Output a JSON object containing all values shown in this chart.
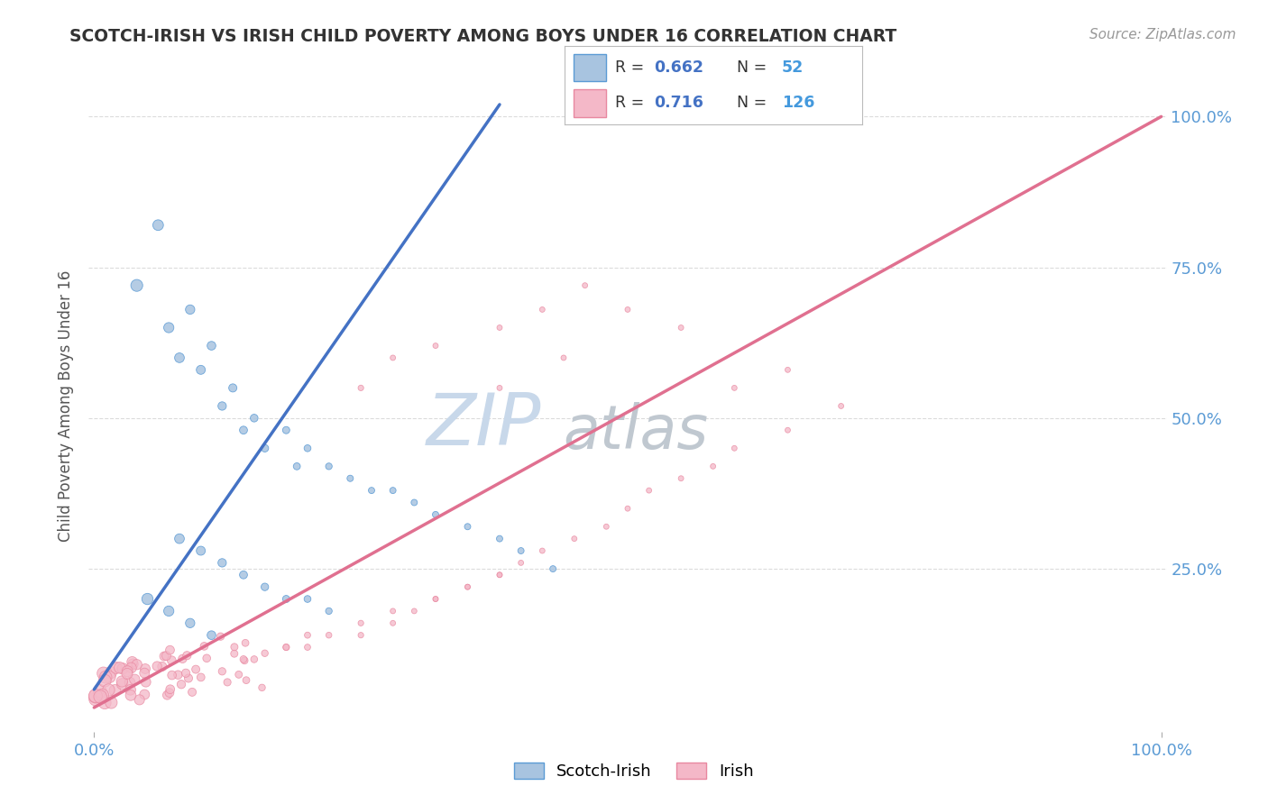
{
  "title": "SCOTCH-IRISH VS IRISH CHILD POVERTY AMONG BOYS UNDER 16 CORRELATION CHART",
  "source": "Source: ZipAtlas.com",
  "ylabel": "Child Poverty Among Boys Under 16",
  "legend_labels": [
    "Scotch-Irish",
    "Irish"
  ],
  "scotch_irish_R": 0.662,
  "scotch_irish_N": 52,
  "irish_R": 0.716,
  "irish_N": 126,
  "scotch_irish_color": "#a8c4e0",
  "scotch_irish_edge_color": "#5b9bd5",
  "scotch_irish_line_color": "#4472c4",
  "irish_color": "#f4b8c8",
  "irish_edge_color": "#e888a0",
  "irish_line_color": "#e07090",
  "watermark_text": "ZIP",
  "watermark_text2": "atlas",
  "watermark_color": "#c8d8ea",
  "watermark_color2": "#c0c8d0",
  "background_color": "#ffffff",
  "grid_color": "#cccccc",
  "title_color": "#333333",
  "axis_label_color": "#555555",
  "tick_label_color_y": "#5b9bd5",
  "tick_label_color_x": "#5b9bd5",
  "legend_R_color": "#4472c4",
  "legend_N_color": "#4499dd",
  "legend_box_color": "#dddddd"
}
